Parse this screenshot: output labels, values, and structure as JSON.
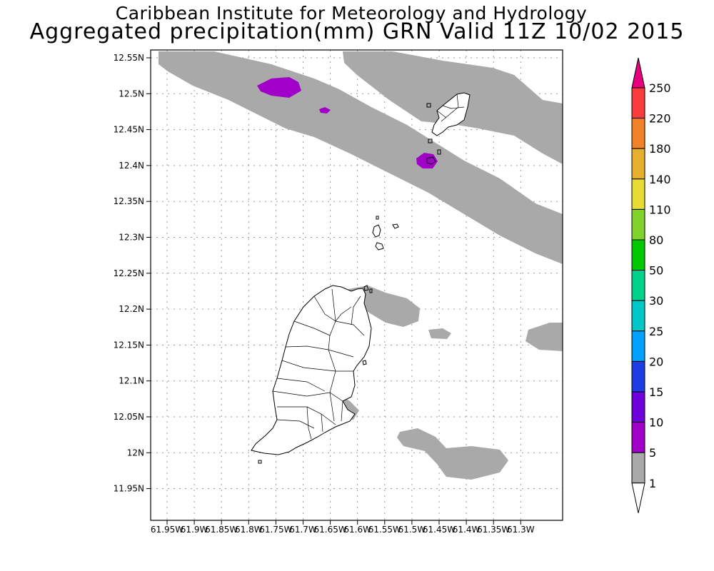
{
  "title": {
    "line1": "Caribbean Institute for Meteorology and Hydrology",
    "line2": "Aggregated precipitation(mm) GRN Valid 11Z 10/02 2015"
  },
  "map": {
    "lat_labels": [
      "12.55N",
      "12.5N",
      "12.45N",
      "12.4N",
      "12.35N",
      "12.3N",
      "12.25N",
      "12.2N",
      "12.15N",
      "12.1N",
      "12.05N",
      "12N",
      "11.95N"
    ],
    "lon_labels": [
      "61.95W",
      "61.9W",
      "61.85W",
      "61.8W",
      "61.75W",
      "61.7W",
      "61.65W",
      "61.6W",
      "61.55W",
      "61.5W",
      "61.45W",
      "61.4W",
      "61.35W",
      "61.3W"
    ],
    "grid": true
  },
  "colorbar": {
    "labels": [
      "1",
      "5",
      "10",
      "15",
      "20",
      "25",
      "30",
      "50",
      "80",
      "110",
      "140",
      "180",
      "220",
      "250"
    ],
    "colors": [
      "#ffffff",
      "#a9a9a9",
      "#a000c8",
      "#6e00dc",
      "#1e3ce6",
      "#00a0ff",
      "#00c8c8",
      "#00d28c",
      "#00c800",
      "#82d22d",
      "#e6dc32",
      "#e6af2d",
      "#f08228",
      "#fa3c3c",
      "#e6007d"
    ]
  }
}
